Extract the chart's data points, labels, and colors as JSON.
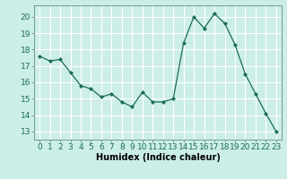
{
  "x": [
    0,
    1,
    2,
    3,
    4,
    5,
    6,
    7,
    8,
    9,
    10,
    11,
    12,
    13,
    14,
    15,
    16,
    17,
    18,
    19,
    20,
    21,
    22,
    23
  ],
  "y": [
    17.6,
    17.3,
    17.4,
    16.6,
    15.8,
    15.6,
    15.1,
    15.3,
    14.8,
    14.5,
    15.4,
    14.8,
    14.8,
    15.0,
    18.4,
    20.0,
    19.3,
    20.2,
    19.6,
    18.3,
    16.5,
    15.3,
    14.1,
    13.0
  ],
  "line_color": "#1a6b5a",
  "marker": "D",
  "marker_size": 2,
  "bg_color": "#cceee8",
  "grid_color": "#ffffff",
  "xlabel": "Humidex (Indice chaleur)",
  "ylim": [
    12.5,
    20.7
  ],
  "xlim": [
    -0.5,
    23.5
  ],
  "yticks": [
    13,
    14,
    15,
    16,
    17,
    18,
    19,
    20
  ],
  "xticks": [
    0,
    1,
    2,
    3,
    4,
    5,
    6,
    7,
    8,
    9,
    10,
    11,
    12,
    13,
    14,
    15,
    16,
    17,
    18,
    19,
    20,
    21,
    22,
    23
  ],
  "xtick_labels": [
    "0",
    "1",
    "2",
    "3",
    "4",
    "5",
    "6",
    "7",
    "8",
    "9",
    "10",
    "11",
    "12",
    "13",
    "14",
    "15",
    "16",
    "17",
    "18",
    "19",
    "20",
    "21",
    "22",
    "23"
  ],
  "xlabel_fontsize": 7,
  "tick_fontsize": 6.5
}
